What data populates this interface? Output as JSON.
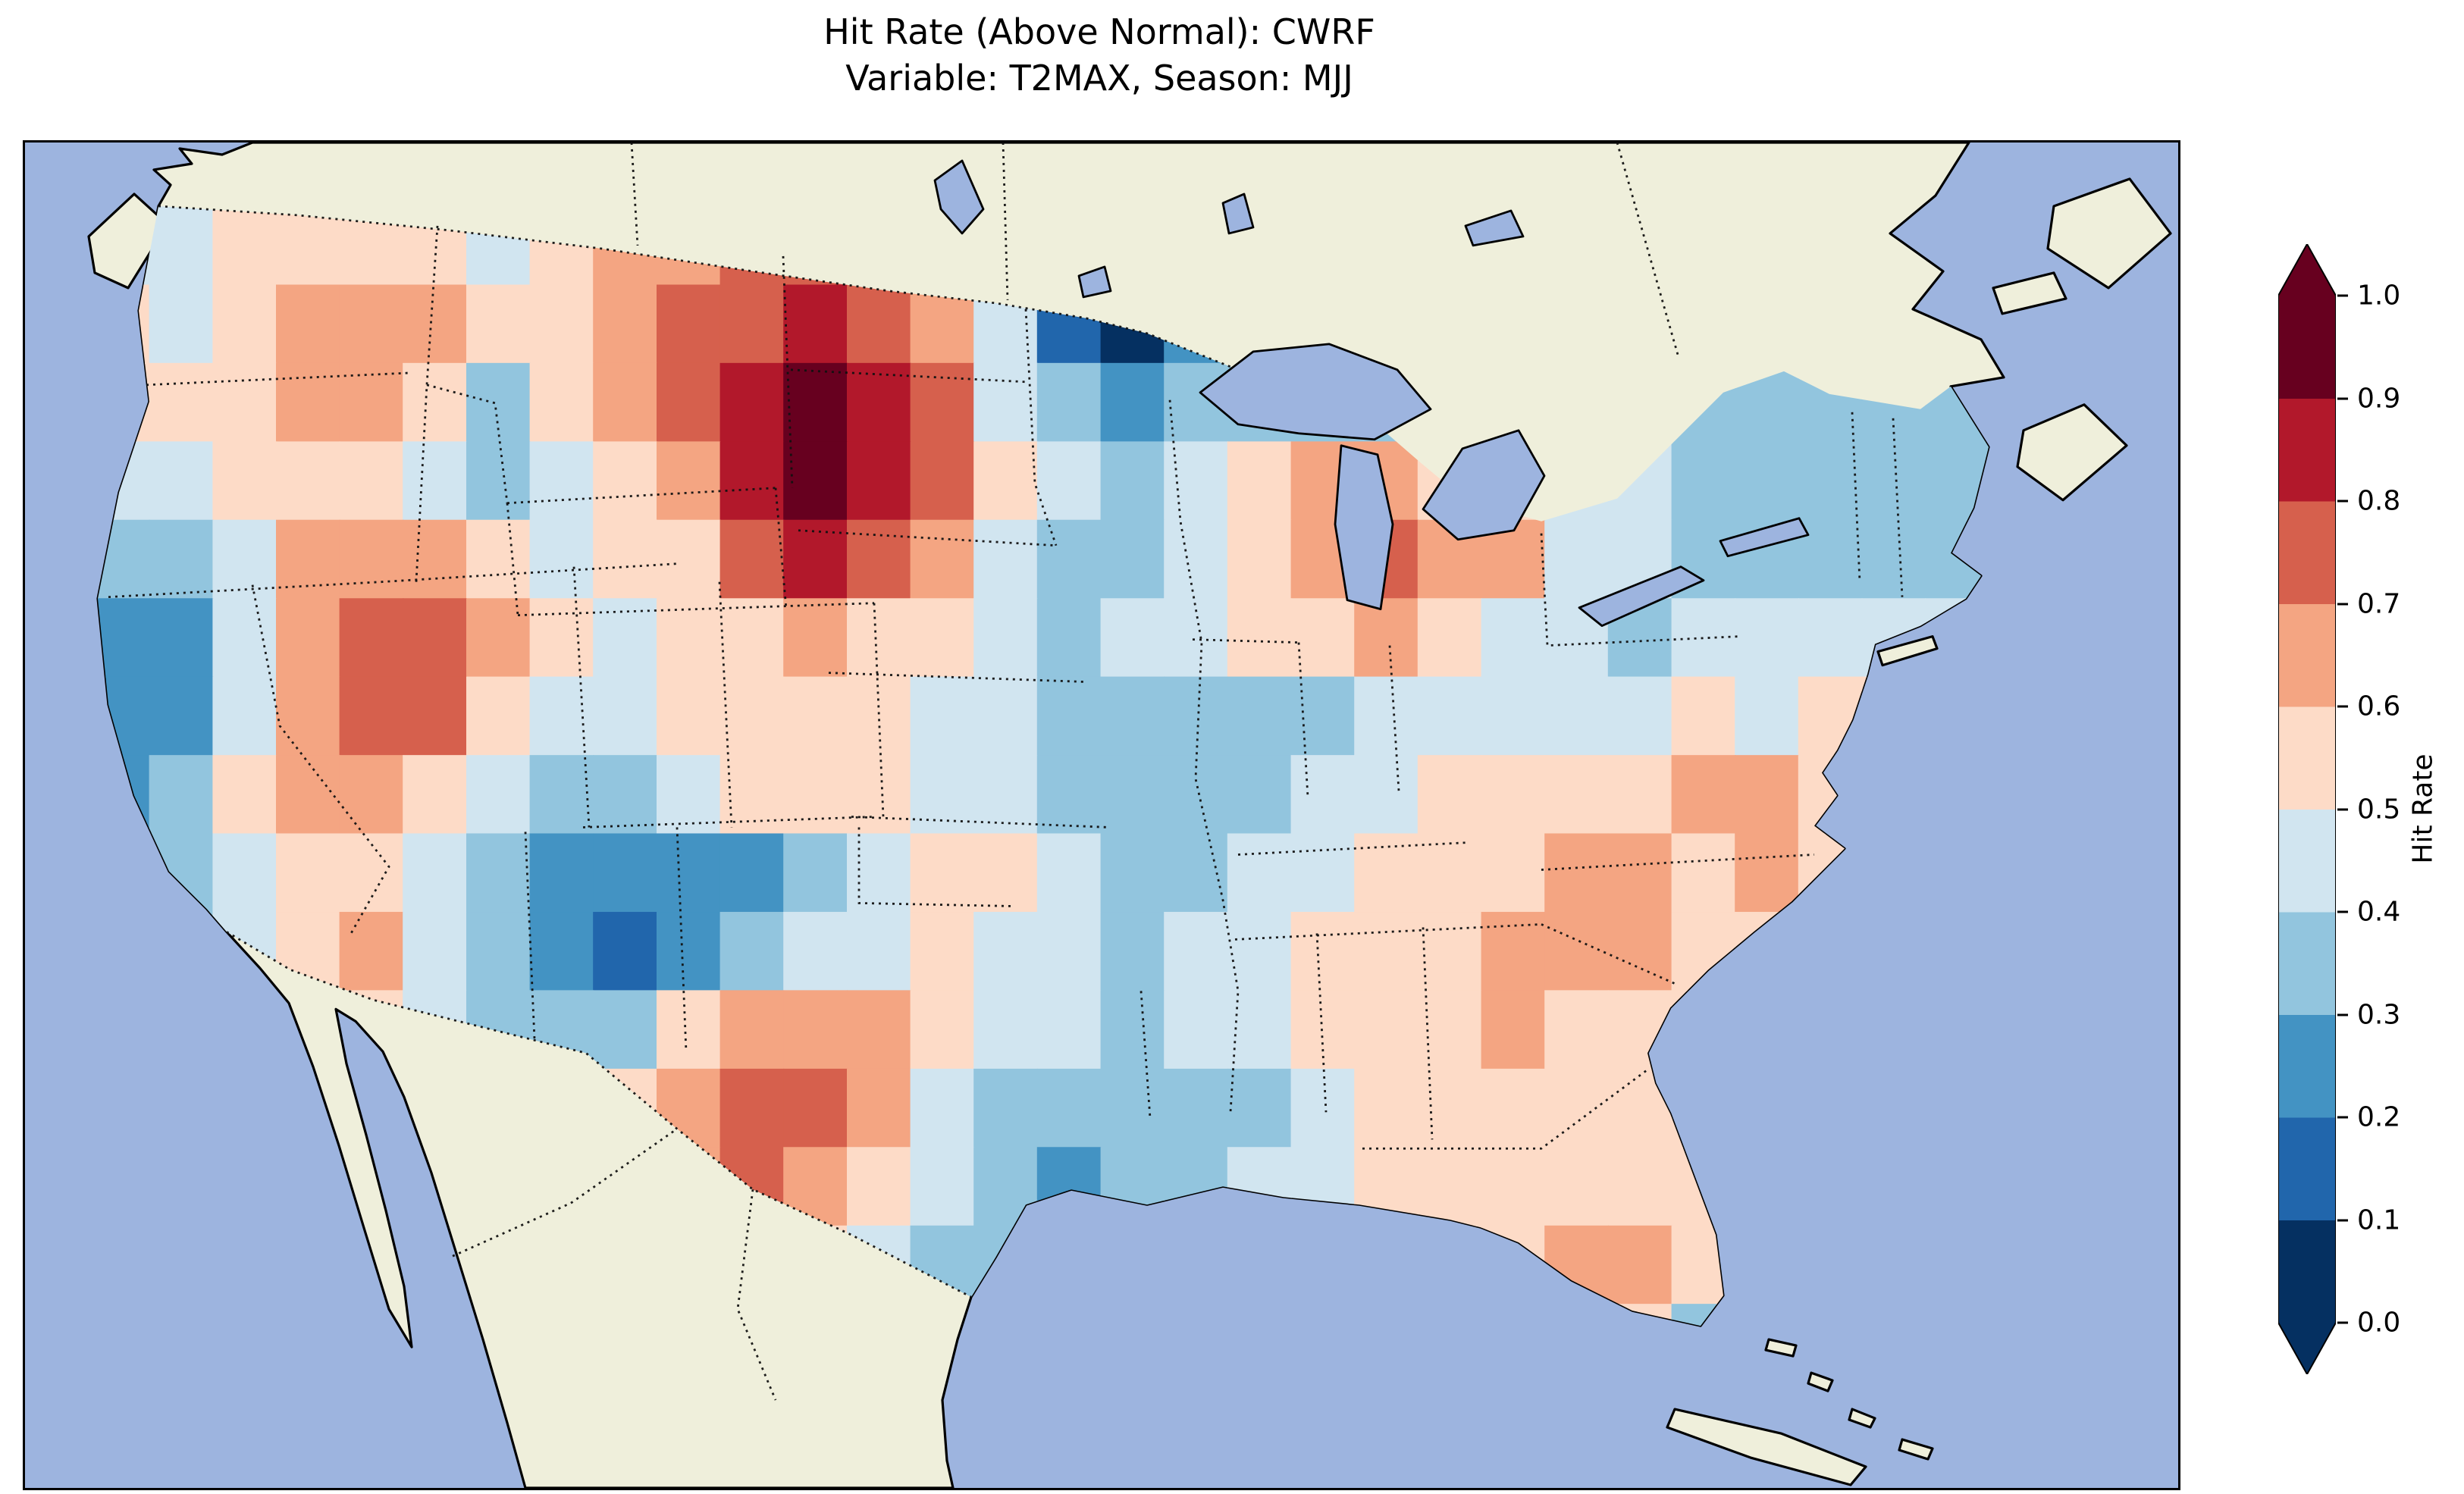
{
  "title": {
    "line1": "Hit Rate (Above Normal): CWRF",
    "line2": "Variable: T2MAX, Season: MJJ"
  },
  "colorbar": {
    "label": "Hit Rate",
    "ticks": [
      "1.0",
      "0.9",
      "0.8",
      "0.7",
      "0.6",
      "0.5",
      "0.4",
      "0.3",
      "0.2",
      "0.1",
      "0.0"
    ],
    "band_colors_low_to_high": [
      "#053061",
      "#2166ac",
      "#4393c3",
      "#92c5de",
      "#d1e5f0",
      "#fddbc7",
      "#f4a582",
      "#d6604d",
      "#b2182b",
      "#67001f"
    ],
    "extend_low_color": "#053061",
    "extend_high_color": "#67001f"
  },
  "map": {
    "ocean_color": "#9db4df",
    "land_color": "#efefdb",
    "lake_color": "#9db4df",
    "coastline_color": "#000000",
    "border_style": "dotted"
  },
  "chart_data": {
    "type": "heatmap",
    "title": "Hit Rate (Above Normal): CWRF",
    "subtitle": "Variable: T2MAX, Season: MJJ",
    "model": "CWRF",
    "variable": "T2MAX",
    "season": "MJJ",
    "region": "Continental United States (Lambert-Conformal style map; land beige, ocean blue, dotted state/country borders)",
    "colorbar_label": "Hit Rate",
    "value_range": [
      0.0,
      1.0
    ],
    "colormap": "RdBu_r, discrete 0.1 bands, extended triangles both ends",
    "colorbar_tick_values": [
      0.0,
      0.1,
      0.2,
      0.3,
      0.4,
      0.5,
      0.6,
      0.7,
      0.8,
      0.9,
      1.0
    ],
    "grid_note": "Approximate 16x30 grid of hit-rate values read from the map; rows north to south, columns west to east; cells outside the US are clipped",
    "values": [
      [
        0.48,
        0.45,
        0.52,
        0.55,
        0.58,
        0.5,
        0.45,
        0.55,
        0.6,
        0.65,
        0.7,
        0.72,
        0.65,
        0.5,
        0.35,
        0.25,
        0.12,
        0.3,
        0.35,
        0.3,
        0.35,
        0.4,
        0.38,
        0.35,
        0.4,
        0.38,
        0.35,
        0.3,
        0.32,
        0.35
      ],
      [
        0.5,
        0.48,
        0.55,
        0.6,
        0.65,
        0.62,
        0.5,
        0.58,
        0.68,
        0.72,
        0.78,
        0.8,
        0.75,
        0.6,
        0.4,
        0.18,
        0.03,
        0.22,
        0.3,
        0.28,
        0.32,
        0.38,
        0.42,
        0.4,
        0.36,
        0.33,
        0.3,
        0.28,
        0.3,
        0.33
      ],
      [
        0.52,
        0.5,
        0.58,
        0.62,
        0.68,
        0.55,
        0.38,
        0.5,
        0.62,
        0.75,
        0.85,
        0.9,
        0.85,
        0.7,
        0.45,
        0.3,
        0.25,
        0.3,
        0.35,
        0.32,
        0.3,
        0.35,
        0.4,
        0.45,
        0.42,
        0.38,
        0.35,
        0.32,
        0.3,
        0.32
      ],
      [
        0.45,
        0.4,
        0.5,
        0.55,
        0.5,
        0.45,
        0.35,
        0.45,
        0.55,
        0.68,
        0.82,
        0.92,
        0.88,
        0.75,
        0.55,
        0.4,
        0.35,
        0.4,
        0.5,
        0.6,
        0.62,
        0.58,
        0.5,
        0.45,
        0.4,
        0.35,
        0.32,
        0.35,
        0.32,
        0.35
      ],
      [
        0.35,
        0.3,
        0.45,
        0.6,
        0.65,
        0.6,
        0.5,
        0.48,
        0.5,
        0.58,
        0.7,
        0.82,
        0.78,
        0.6,
        0.45,
        0.38,
        0.35,
        0.42,
        0.55,
        0.68,
        0.72,
        0.68,
        0.6,
        0.48,
        0.4,
        0.35,
        0.3,
        0.33,
        0.35,
        0.38
      ],
      [
        0.28,
        0.25,
        0.4,
        0.65,
        0.72,
        0.75,
        0.62,
        0.5,
        0.45,
        0.5,
        0.55,
        0.62,
        0.58,
        0.5,
        0.42,
        0.38,
        0.4,
        0.45,
        0.5,
        0.55,
        0.6,
        0.55,
        0.45,
        0.4,
        0.38,
        0.4,
        0.42,
        0.4,
        0.42,
        0.45
      ],
      [
        0.22,
        0.28,
        0.45,
        0.68,
        0.75,
        0.7,
        0.55,
        0.45,
        0.48,
        0.52,
        0.55,
        0.52,
        0.5,
        0.45,
        0.4,
        0.35,
        0.32,
        0.35,
        0.32,
        0.38,
        0.45,
        0.48,
        0.45,
        0.42,
        0.45,
        0.5,
        0.48,
        0.5,
        0.5,
        0.5
      ],
      [
        0.25,
        0.3,
        0.5,
        0.6,
        0.62,
        0.55,
        0.42,
        0.35,
        0.38,
        0.45,
        0.5,
        0.52,
        0.5,
        0.45,
        0.42,
        0.38,
        0.3,
        0.32,
        0.35,
        0.4,
        0.45,
        0.5,
        0.52,
        0.5,
        0.55,
        0.6,
        0.62,
        0.55,
        0.5,
        0.5
      ],
      [
        0.28,
        0.32,
        0.48,
        0.52,
        0.5,
        0.4,
        0.3,
        0.25,
        0.2,
        0.2,
        0.25,
        0.32,
        0.4,
        0.5,
        0.52,
        0.45,
        0.38,
        0.35,
        0.4,
        0.45,
        0.5,
        0.52,
        0.58,
        0.62,
        0.6,
        0.58,
        0.62,
        0.55,
        0.5,
        0.5
      ],
      [
        0.32,
        0.38,
        0.45,
        0.58,
        0.62,
        0.45,
        0.32,
        0.22,
        0.18,
        0.22,
        0.3,
        0.4,
        0.48,
        0.52,
        0.48,
        0.4,
        0.35,
        0.4,
        0.45,
        0.5,
        0.52,
        0.55,
        0.62,
        0.68,
        0.62,
        0.55,
        0.52,
        0.5,
        0.5,
        0.5
      ],
      [
        0.4,
        0.42,
        0.5,
        0.55,
        0.5,
        0.42,
        0.35,
        0.3,
        0.35,
        0.5,
        0.62,
        0.68,
        0.6,
        0.5,
        0.45,
        0.4,
        0.38,
        0.42,
        0.48,
        0.52,
        0.55,
        0.58,
        0.62,
        0.58,
        0.55,
        0.52,
        0.5,
        0.5,
        0.5,
        0.5
      ],
      [
        0.45,
        0.48,
        0.5,
        0.52,
        0.48,
        0.45,
        0.4,
        0.42,
        0.55,
        0.68,
        0.78,
        0.75,
        0.62,
        0.45,
        0.35,
        0.32,
        0.35,
        0.38,
        0.35,
        0.45,
        0.5,
        0.55,
        0.58,
        0.55,
        0.52,
        0.5,
        0.5,
        0.5,
        0.5,
        0.5
      ],
      [
        0.5,
        0.5,
        0.5,
        0.5,
        0.5,
        0.48,
        0.45,
        0.48,
        0.55,
        0.65,
        0.72,
        0.65,
        0.55,
        0.4,
        0.3,
        0.28,
        0.32,
        0.35,
        0.4,
        0.45,
        0.5,
        0.52,
        0.55,
        0.58,
        0.55,
        0.52,
        0.5,
        0.5,
        0.5,
        0.5
      ],
      [
        0.5,
        0.5,
        0.5,
        0.5,
        0.5,
        0.5,
        0.5,
        0.5,
        0.52,
        0.58,
        0.62,
        0.55,
        0.45,
        0.38,
        0.35,
        0.4,
        0.45,
        0.45,
        0.48,
        0.5,
        0.5,
        0.52,
        0.55,
        0.6,
        0.62,
        0.55,
        0.52,
        0.5,
        0.5,
        0.5
      ],
      [
        0.5,
        0.5,
        0.5,
        0.5,
        0.5,
        0.5,
        0.5,
        0.5,
        0.5,
        0.52,
        0.55,
        0.5,
        0.42,
        0.4,
        0.45,
        0.5,
        0.5,
        0.5,
        0.5,
        0.5,
        0.5,
        0.5,
        0.52,
        0.55,
        0.5,
        0.35,
        0.5,
        0.5,
        0.5,
        0.5
      ],
      [
        0.5,
        0.5,
        0.5,
        0.5,
        0.5,
        0.5,
        0.5,
        0.5,
        0.5,
        0.5,
        0.5,
        0.5,
        0.45,
        0.48,
        0.5,
        0.5,
        0.5,
        0.5,
        0.5,
        0.5,
        0.5,
        0.5,
        0.5,
        0.5,
        0.52,
        0.5,
        0.5,
        0.5,
        0.5,
        0.5
      ]
    ]
  }
}
